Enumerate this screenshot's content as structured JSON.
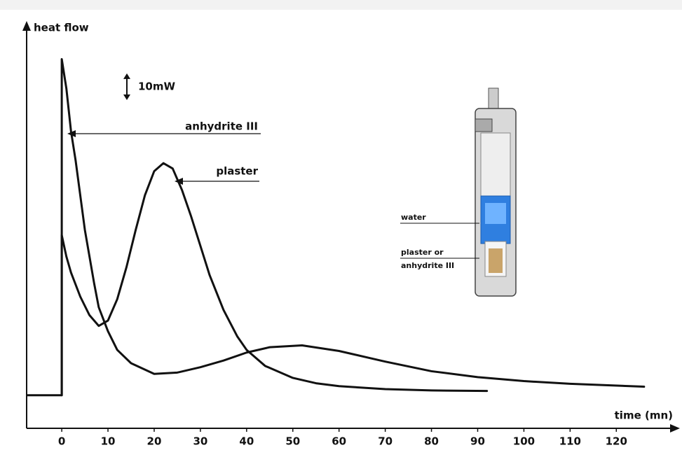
{
  "chart_data": {
    "type": "line",
    "x_label": "heat flow",
    "y_label_unused": null,
    "xlabel": "time (mn)",
    "xlim": [
      -7.6,
      133
    ],
    "ylim": [
      -12.4,
      139
    ],
    "xticks": [
      0,
      10,
      20,
      30,
      40,
      50,
      60,
      70,
      80,
      90,
      100,
      110,
      120
    ],
    "scale_bar": {
      "value": 10,
      "label": "10mW"
    },
    "series": [
      {
        "name": "anhydrite III",
        "color": "#111111",
        "x": [
          0,
          0,
          1,
          2,
          3,
          5,
          7,
          8,
          10,
          12,
          15,
          20,
          25,
          30,
          35,
          40,
          45,
          52,
          60,
          70,
          80,
          90,
          100,
          110,
          126
        ],
        "values": [
          0,
          126,
          115,
          99,
          88,
          62,
          42,
          33,
          24,
          17,
          12,
          8,
          8.5,
          10.5,
          13,
          16,
          18,
          18.7,
          16.6,
          12.6,
          9,
          6.8,
          5.3,
          4.3,
          3.2
        ]
      },
      {
        "name": "plaster",
        "color": "#111111",
        "x": [
          -7.5,
          0,
          0,
          1,
          2,
          4,
          6,
          8,
          10,
          12,
          14,
          16,
          18,
          20,
          22,
          24,
          26,
          28,
          30,
          32,
          35,
          38,
          40,
          44,
          50,
          55,
          60,
          70,
          80,
          92
        ],
        "values": [
          0,
          0,
          60,
          52,
          46,
          37,
          30,
          26,
          28,
          36,
          48,
          62,
          75,
          84,
          87,
          85,
          77,
          67,
          56,
          45,
          32,
          22,
          17,
          11,
          6.5,
          4.5,
          3.4,
          2.3,
          1.8,
          1.6
        ]
      }
    ],
    "inset": {
      "labels": [
        "water",
        "plaster or",
        "anhydrite III"
      ]
    }
  }
}
